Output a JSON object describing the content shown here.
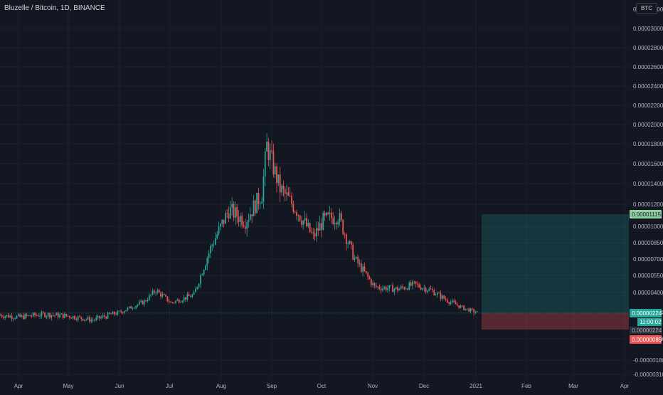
{
  "header": {
    "title": "Bluzelle / Bitcoin, 1D, BINANCE",
    "currency": "BTC"
  },
  "colors": {
    "background": "#131722",
    "grid": "#1e222d",
    "text": "#b2b5be",
    "up": "#26a69a",
    "down": "#ef5350",
    "profit_zone": "rgba(38,166,154,0.22)",
    "loss_zone": "rgba(239,83,80,0.30)",
    "target_label": "#8fd19e",
    "entry_label": "#26a69a",
    "stop_label": "#ef5350"
  },
  "chart_data": {
    "type": "candlestick",
    "x_ticks": [
      "Apr",
      "May",
      "Jun",
      "Jul",
      "Aug",
      "Sep",
      "Oct",
      "Nov",
      "Dec",
      "2021",
      "Feb",
      "Mar",
      "Apr"
    ],
    "y_tick_labels": [
      "0.00003000",
      "0.00002800",
      "0.00002600",
      "0.00002400",
      "0.00002200",
      "0.00002000",
      "0.00001800",
      "0.00001600",
      "0.00001400",
      "0.00001200",
      "0.00001000",
      "0.00000850",
      "0.00000700",
      "0.00000550",
      "0.00000400",
      "0.00000224",
      "0.00000089",
      "-0.00000180",
      "-0.00000310"
    ],
    "y_tick_values": [
      3e-05,
      2.8e-05,
      2.6e-05,
      2.4e-05,
      2.2e-05,
      2e-05,
      1.8e-05,
      1.6e-05,
      1.4e-05,
      1.2e-05,
      1e-05,
      8.5e-06,
      7e-06,
      5.5e-06,
      4e-06,
      2.24e-06,
      8.9e-07,
      -1.8e-06,
      -3.1e-06
    ],
    "top_label": "0.00003200",
    "close_series": [
      [
        "2020-03-20",
        2.1e-06
      ],
      [
        "2020-04-01",
        2e-06
      ],
      [
        "2020-04-15",
        2.15e-06
      ],
      [
        "2020-05-01",
        2.05e-06
      ],
      [
        "2020-05-15",
        1.85e-06
      ],
      [
        "2020-06-01",
        2.3e-06
      ],
      [
        "2020-06-15",
        3.2e-06
      ],
      [
        "2020-06-22",
        4.2e-06
      ],
      [
        "2020-07-01",
        3.1e-06
      ],
      [
        "2020-07-15",
        3.8e-06
      ],
      [
        "2020-07-25",
        8e-06
      ],
      [
        "2020-08-05",
        1.15e-05
      ],
      [
        "2020-08-15",
        1.05e-05
      ],
      [
        "2020-08-25",
        1.3e-05
      ],
      [
        "2020-08-28",
        1.78e-05
      ],
      [
        "2020-09-05",
        1.35e-05
      ],
      [
        "2020-09-15",
        1.15e-05
      ],
      [
        "2020-09-25",
        9e-06
      ],
      [
        "2020-10-01",
        1.05e-05
      ],
      [
        "2020-10-10",
        1.1e-05
      ],
      [
        "2020-10-20",
        7e-06
      ],
      [
        "2020-11-01",
        4.5e-06
      ],
      [
        "2020-11-15",
        4.3e-06
      ],
      [
        "2020-11-25",
        4.7e-06
      ],
      [
        "2020-12-05",
        4.2e-06
      ],
      [
        "2020-12-15",
        3.3e-06
      ],
      [
        "2020-12-25",
        2.6e-06
      ],
      [
        "2021-01-02",
        2.24e-06
      ]
    ],
    "position_tool": {
      "target": "0.00001115",
      "entry": "0.00000224",
      "stop": "0.00000089",
      "countdown": "11:00:02"
    },
    "grid": true
  }
}
